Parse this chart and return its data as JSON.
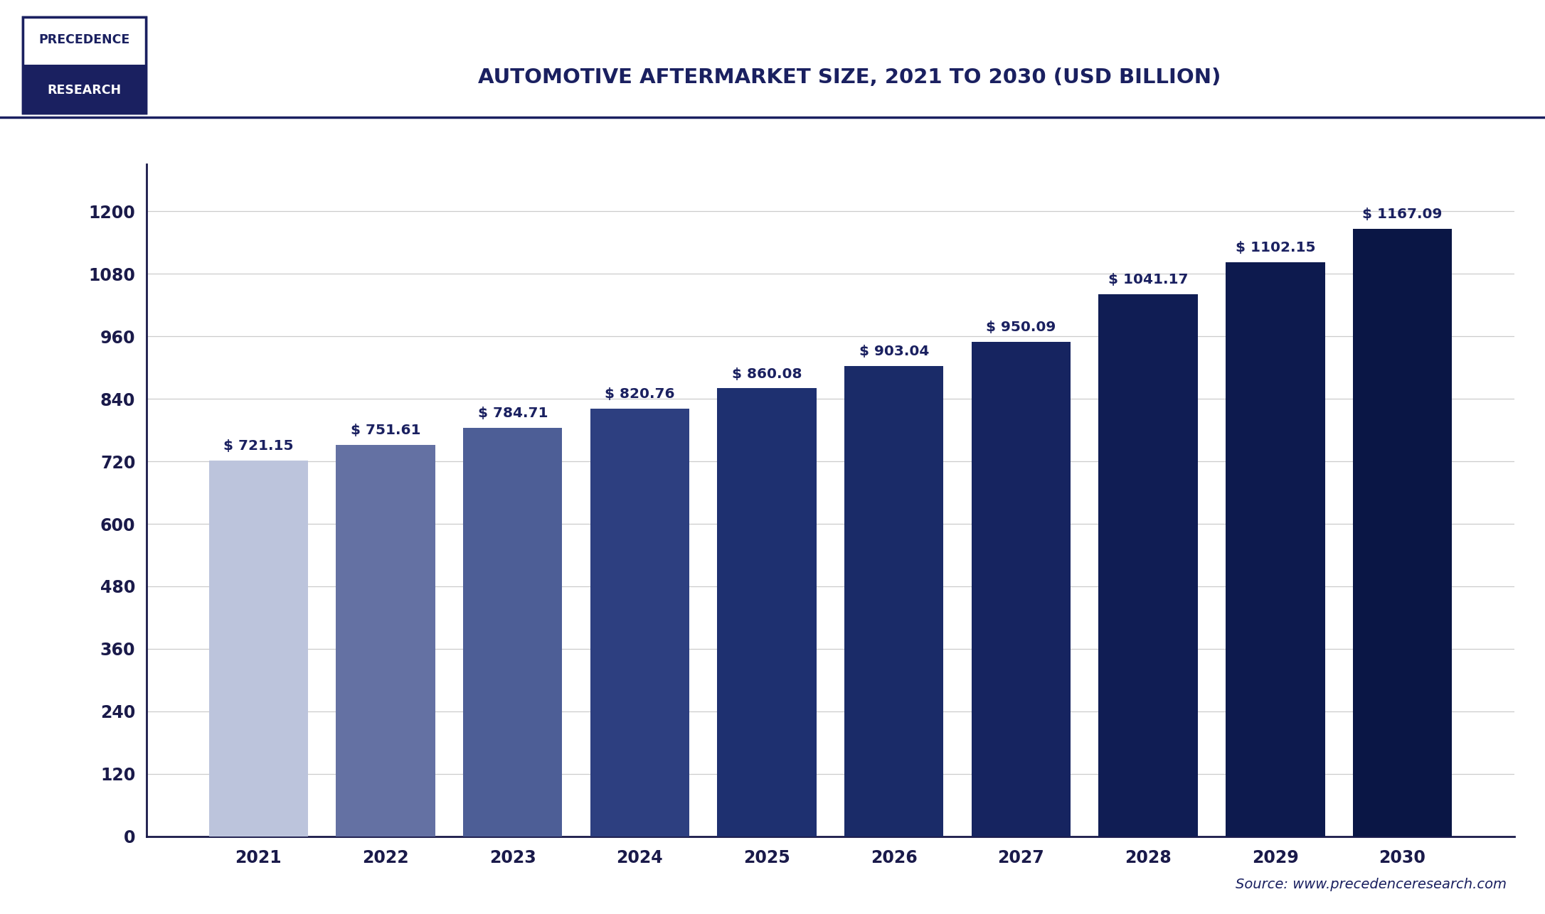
{
  "title": "AUTOMOTIVE AFTERMARKET SIZE, 2021 TO 2030 (USD BILLION)",
  "years": [
    "2021",
    "2022",
    "2023",
    "2024",
    "2025",
    "2026",
    "2027",
    "2028",
    "2029",
    "2030"
  ],
  "values": [
    721.15,
    751.61,
    784.71,
    820.76,
    860.08,
    903.04,
    950.09,
    1041.17,
    1102.15,
    1167.09
  ],
  "bar_colors": [
    "#bcc4dc",
    "#6471a3",
    "#4d5e96",
    "#2d3f80",
    "#1e3070",
    "#1a2b68",
    "#162460",
    "#101d54",
    "#0d1a4e",
    "#0a1645"
  ],
  "ylim": [
    0,
    1290
  ],
  "yticks": [
    0,
    120,
    240,
    360,
    480,
    600,
    720,
    840,
    960,
    1080,
    1200
  ],
  "background_color": "#ffffff",
  "plot_background": "#ffffff",
  "grid_color": "#cccccc",
  "bar_label_color": "#1a2060",
  "axis_color": "#1a1a4a",
  "title_color": "#1a2060",
  "source_text": "Source: www.precedenceresearch.com",
  "logo_text_top": "PRECEDENCE",
  "logo_text_bottom": "RESEARCH",
  "logo_border_color": "#1a2060",
  "logo_bg_bottom": "#1a2060",
  "top_border_color": "#1a2060",
  "bar_width": 0.78
}
